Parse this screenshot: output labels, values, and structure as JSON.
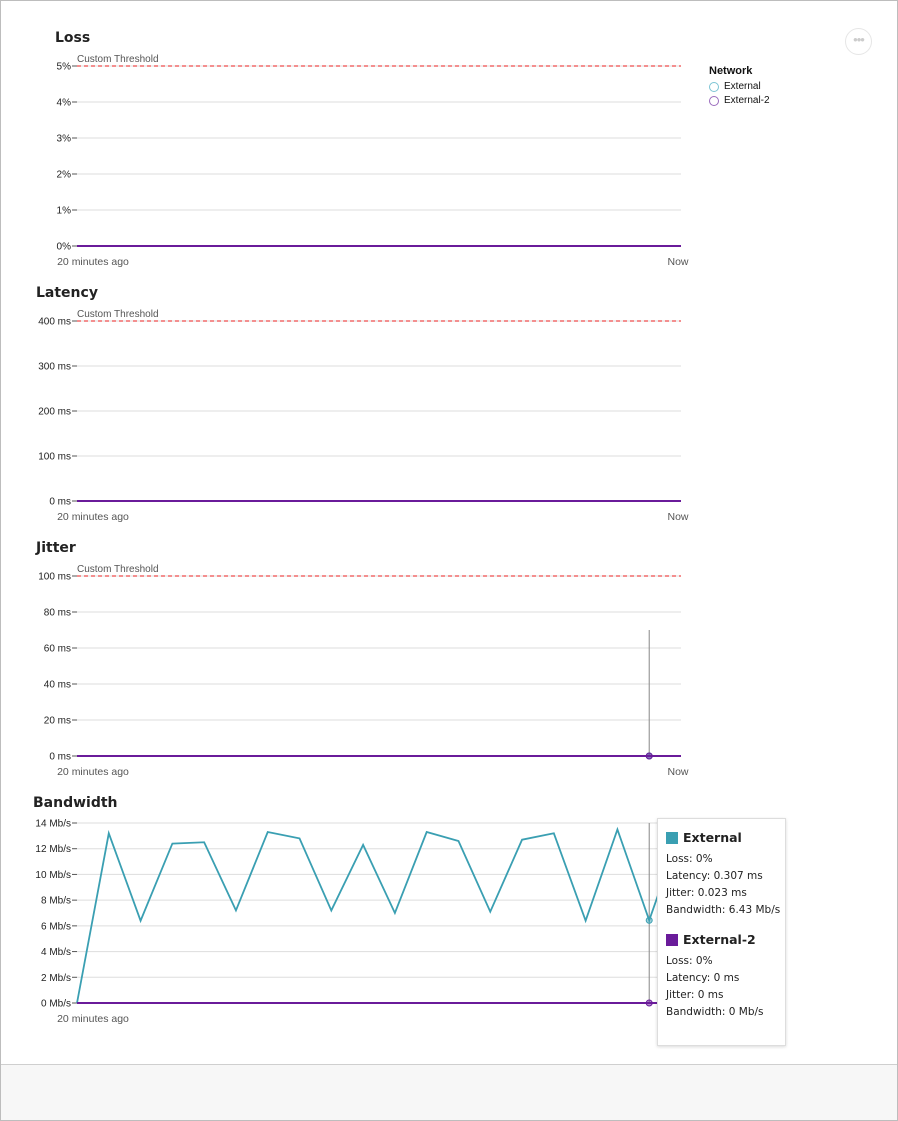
{
  "menu_icon": "more-horizontal-icon",
  "legend": {
    "title": "Network",
    "items": [
      {
        "label": "External",
        "color": "#7cc4d4"
      },
      {
        "label": "External-2",
        "color": "#9a6bbd"
      }
    ]
  },
  "colors": {
    "external": "#3a9fb2",
    "external2": "#6a1b9a",
    "threshold": "#f06a6a",
    "grid": "#dddddd"
  },
  "chart_data": [
    {
      "type": "line",
      "title": "Loss",
      "threshold_label": "Custom Threshold",
      "threshold": 5,
      "yticks": [
        0,
        1,
        2,
        3,
        4,
        5
      ],
      "ytick_labels": [
        "0%",
        "1%",
        "2%",
        "3%",
        "4%",
        "5%"
      ],
      "ylim": [
        0,
        5
      ],
      "xlabel_start": "20 minutes ago",
      "xlabel_end": "Now",
      "grid": true,
      "series": [
        {
          "name": "External",
          "values": [
            0,
            0
          ]
        },
        {
          "name": "External-2",
          "values": [
            0,
            0
          ]
        }
      ]
    },
    {
      "type": "line",
      "title": "Latency",
      "threshold_label": "Custom Threshold",
      "threshold": 400,
      "yticks": [
        0,
        100,
        200,
        300,
        400
      ],
      "ytick_labels": [
        "0 ms",
        "100 ms",
        "200 ms",
        "300 ms",
        "400 ms"
      ],
      "ylim": [
        0,
        400
      ],
      "xlabel_start": "20 minutes ago",
      "xlabel_end": "Now",
      "grid": true,
      "series": [
        {
          "name": "External",
          "values": [
            0,
            0
          ]
        },
        {
          "name": "External-2",
          "values": [
            0,
            0
          ]
        }
      ]
    },
    {
      "type": "line",
      "title": "Jitter",
      "threshold_label": "Custom Threshold",
      "threshold": 100,
      "yticks": [
        0,
        20,
        40,
        60,
        80,
        100
      ],
      "ytick_labels": [
        "0 ms",
        "20 ms",
        "40 ms",
        "60 ms",
        "80 ms",
        "100 ms"
      ],
      "ylim": [
        0,
        100
      ],
      "xlabel_start": "20 minutes ago",
      "xlabel_end": "Now",
      "grid": true,
      "hover_index": 18,
      "series": [
        {
          "name": "External",
          "values": [
            0,
            0
          ]
        },
        {
          "name": "External-2",
          "values": [
            0,
            0
          ]
        }
      ]
    },
    {
      "type": "line",
      "title": "Bandwidth",
      "yticks": [
        0,
        2,
        4,
        6,
        8,
        10,
        12,
        14
      ],
      "ytick_labels": [
        "0 Mb/s",
        "2 Mb/s",
        "4 Mb/s",
        "6 Mb/s",
        "8 Mb/s",
        "10 Mb/s",
        "12 Mb/s",
        "14 Mb/s"
      ],
      "ylim": [
        0,
        14
      ],
      "xlabel_start": "20 minutes ago",
      "grid": true,
      "hover_index": 18,
      "series": [
        {
          "name": "External",
          "values": [
            0,
            13.2,
            6.4,
            12.4,
            12.5,
            7.2,
            13.3,
            12.8,
            7.2,
            12.3,
            7.0,
            13.3,
            12.6,
            7.1,
            12.7,
            13.2,
            6.4,
            13.5,
            6.43,
            13.5
          ]
        },
        {
          "name": "External-2",
          "values": [
            0,
            0,
            0,
            0,
            0,
            0,
            0,
            0,
            0,
            0,
            0,
            0,
            0,
            0,
            0,
            0,
            0,
            0,
            0,
            0
          ]
        }
      ]
    }
  ],
  "tooltip": {
    "groups": [
      {
        "name": "External",
        "lines": [
          "Loss: 0%",
          "Latency: 0.307 ms",
          "Jitter: 0.023 ms",
          "Bandwidth: 6.43 Mb/s"
        ]
      },
      {
        "name": "External-2",
        "lines": [
          "Loss: 0%",
          "Latency: 0 ms",
          "Jitter: 0 ms",
          "Bandwidth: 0 Mb/s"
        ]
      }
    ]
  }
}
